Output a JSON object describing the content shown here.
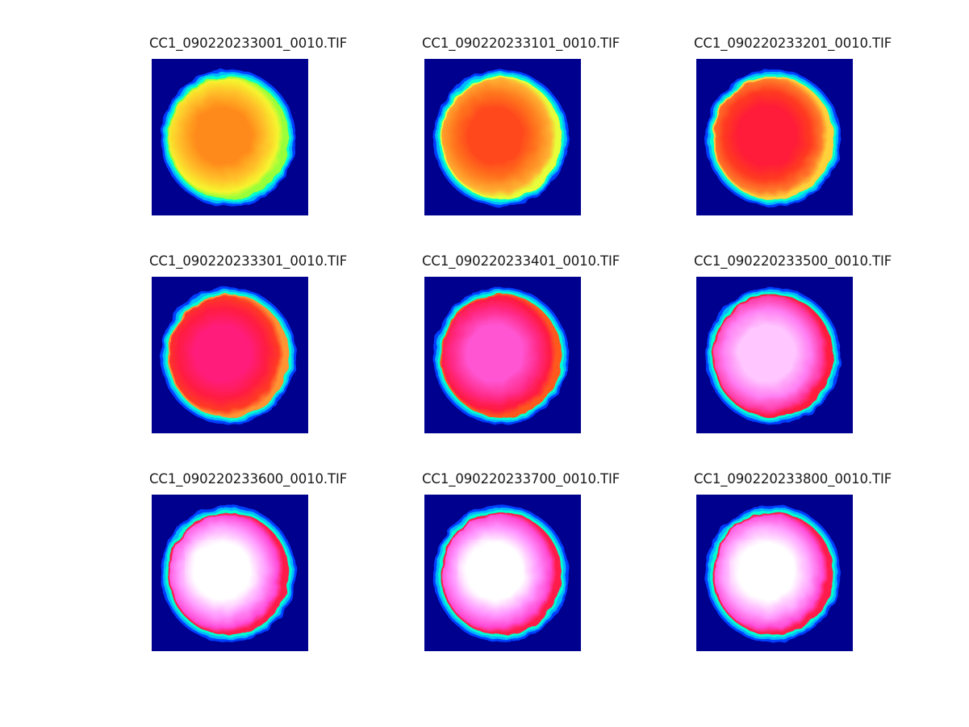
{
  "panels": [
    {
      "title": "CC1_090220233001_0010.TIF",
      "palette": [
        "#ff8a1a",
        "#ffc02a",
        "#f6f52e",
        "#98ff3a"
      ],
      "highlight_core": false
    },
    {
      "title": "CC1_090220233101_0010.TIF",
      "palette": [
        "#ff4a1a",
        "#ff7d20",
        "#ffb032",
        "#e7ff3a"
      ],
      "highlight_core": false
    },
    {
      "title": "CC1_090220233201_0010.TIF",
      "palette": [
        "#ff1a3a",
        "#ff3a20",
        "#ff7c2a",
        "#ffd23a"
      ],
      "highlight_core": false
    },
    {
      "title": "CC1_090220233301_0010.TIF",
      "palette": [
        "#ff1a7a",
        "#ff1a44",
        "#ff3a24",
        "#ff9432"
      ],
      "highlight_core": false
    },
    {
      "title": "CC1_090220233401_0010.TIF",
      "palette": [
        "#ff55d2",
        "#ff2a88",
        "#ff1a40",
        "#ff5a1e"
      ],
      "highlight_core": false
    },
    {
      "title": "CC1_090220233500_0010.TIF",
      "palette": [
        "#ffc6ff",
        "#ff7cf2",
        "#ff3aa4",
        "#ff1a3c"
      ],
      "highlight_core": false
    },
    {
      "title": "CC1_090220233600_0010.TIF",
      "palette": [
        "#ffffff",
        "#ff9cff",
        "#ff4ad8",
        "#ff1a4a"
      ],
      "highlight_core": true
    },
    {
      "title": "CC1_090220233700_0010.TIF",
      "palette": [
        "#ffffff",
        "#ff94ff",
        "#ff48d2",
        "#ff1a48"
      ],
      "highlight_core": true
    },
    {
      "title": "CC1_090220233800_0010.TIF",
      "palette": [
        "#ffffff",
        "#ffa2ff",
        "#ff4cd8",
        "#ff1a4c"
      ],
      "highlight_core": true
    }
  ],
  "colors": {
    "background_field": "#00008f",
    "ring_inner": "#00ffd0",
    "ring_mid": "#00b8ff",
    "ring_outer": "#0040ff",
    "title_text": "#1a1a1a"
  }
}
